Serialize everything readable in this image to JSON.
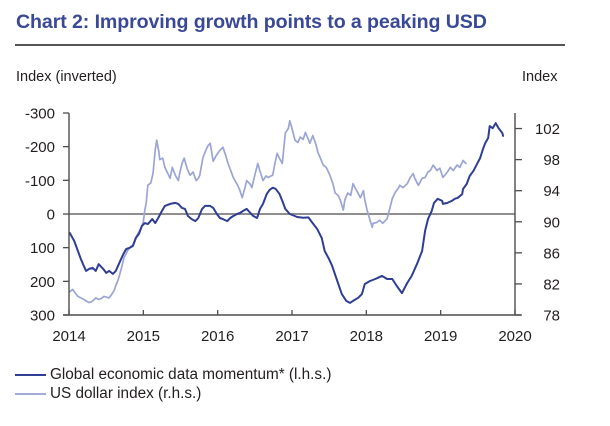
{
  "chart_data": {
    "type": "line",
    "title": "Chart 2: Improving growth points to a peaking USD",
    "x_axis": {
      "label": "",
      "range": [
        2014,
        2020
      ],
      "ticks": [
        2014,
        2015,
        2016,
        2017,
        2018,
        2019,
        2020
      ],
      "tick_labels": [
        "2014",
        "2015",
        "2016",
        "2017",
        "2018",
        "2019",
        "2020"
      ]
    },
    "y_axis_left": {
      "label": "Index (inverted)",
      "range": [
        -300,
        300
      ],
      "inverted": true,
      "ticks": [
        -300,
        -200,
        -100,
        0,
        100,
        200,
        300
      ],
      "tick_labels": [
        "-300",
        "-200",
        "-100",
        "0",
        "100",
        "200",
        "300"
      ]
    },
    "y_axis_right": {
      "label": "Index",
      "range": [
        78,
        104
      ],
      "ticks": [
        78,
        82,
        86,
        90,
        94,
        98,
        102
      ],
      "tick_labels": [
        "78",
        "82",
        "86",
        "90",
        "94",
        "98",
        "102"
      ]
    },
    "reference_line": {
      "axis": "left",
      "value": 0,
      "color": "#8f8f8f"
    },
    "grid": false,
    "legend_position": "bottom-left",
    "series": [
      {
        "name": "Global economic data momentum* (l.h.s.)",
        "axis": "left",
        "color": "#2f3e92",
        "points": [
          [
            2014.01,
            56
          ],
          [
            2014.07,
            80
          ],
          [
            2014.12,
            110
          ],
          [
            2014.16,
            134
          ],
          [
            2014.2,
            155
          ],
          [
            2014.23,
            169
          ],
          [
            2014.27,
            163
          ],
          [
            2014.32,
            160
          ],
          [
            2014.36,
            169
          ],
          [
            2014.4,
            149
          ],
          [
            2014.46,
            163
          ],
          [
            2014.5,
            175
          ],
          [
            2014.54,
            169
          ],
          [
            2014.59,
            178
          ],
          [
            2014.63,
            169
          ],
          [
            2014.67,
            149
          ],
          [
            2014.73,
            119
          ],
          [
            2014.77,
            104
          ],
          [
            2014.81,
            101
          ],
          [
            2014.86,
            95
          ],
          [
            2014.9,
            71
          ],
          [
            2014.94,
            59
          ],
          [
            2014.98,
            36
          ],
          [
            2015.02,
            27
          ],
          [
            2015.06,
            30
          ],
          [
            2015.12,
            15
          ],
          [
            2015.16,
            27
          ],
          [
            2015.2,
            12
          ],
          [
            2015.25,
            -9
          ],
          [
            2015.29,
            -24
          ],
          [
            2015.36,
            -30
          ],
          [
            2015.43,
            -33
          ],
          [
            2015.47,
            -30
          ],
          [
            2015.52,
            -18
          ],
          [
            2015.56,
            -15
          ],
          [
            2015.6,
            6
          ],
          [
            2015.65,
            15
          ],
          [
            2015.7,
            21
          ],
          [
            2015.74,
            12
          ],
          [
            2015.79,
            -15
          ],
          [
            2015.83,
            -24
          ],
          [
            2015.9,
            -24
          ],
          [
            2015.94,
            -18
          ],
          [
            2015.99,
            0
          ],
          [
            2016.03,
            12
          ],
          [
            2016.07,
            15
          ],
          [
            2016.13,
            21
          ],
          [
            2016.17,
            12
          ],
          [
            2016.21,
            6
          ],
          [
            2016.26,
            0
          ],
          [
            2016.3,
            -3
          ],
          [
            2016.34,
            -9
          ],
          [
            2016.39,
            -15
          ],
          [
            2016.44,
            -3
          ],
          [
            2016.48,
            6
          ],
          [
            2016.53,
            12
          ],
          [
            2016.57,
            -15
          ],
          [
            2016.61,
            -30
          ],
          [
            2016.66,
            -59
          ],
          [
            2016.7,
            -72
          ],
          [
            2016.74,
            -78
          ],
          [
            2016.78,
            -75
          ],
          [
            2016.83,
            -60
          ],
          [
            2016.87,
            -39
          ],
          [
            2016.91,
            -15
          ],
          [
            2016.97,
            0
          ],
          [
            2017.07,
            9
          ],
          [
            2017.15,
            11
          ],
          [
            2017.22,
            10
          ],
          [
            2017.27,
            25
          ],
          [
            2017.34,
            45
          ],
          [
            2017.4,
            71
          ],
          [
            2017.44,
            110
          ],
          [
            2017.5,
            135
          ],
          [
            2017.54,
            154
          ],
          [
            2017.61,
            199
          ],
          [
            2017.67,
            238
          ],
          [
            2017.73,
            258
          ],
          [
            2017.78,
            264
          ],
          [
            2017.82,
            258
          ],
          [
            2017.89,
            249
          ],
          [
            2017.94,
            238
          ],
          [
            2017.98,
            208
          ],
          [
            2018.05,
            199
          ],
          [
            2018.12,
            193
          ],
          [
            2018.17,
            188
          ],
          [
            2018.21,
            184
          ],
          [
            2018.28,
            193
          ],
          [
            2018.35,
            193
          ],
          [
            2018.41,
            214
          ],
          [
            2018.48,
            235
          ],
          [
            2018.55,
            205
          ],
          [
            2018.61,
            184
          ],
          [
            2018.68,
            149
          ],
          [
            2018.75,
            110
          ],
          [
            2018.79,
            50
          ],
          [
            2018.83,
            15
          ],
          [
            2018.88,
            -9
          ],
          [
            2018.91,
            -33
          ],
          [
            2018.96,
            -45
          ],
          [
            2019.02,
            -39
          ],
          [
            2019.03,
            -30
          ],
          [
            2019.09,
            -33
          ],
          [
            2019.15,
            -39
          ],
          [
            2019.19,
            -45
          ],
          [
            2019.23,
            -48
          ],
          [
            2019.29,
            -59
          ],
          [
            2019.3,
            -74
          ],
          [
            2019.35,
            -89
          ],
          [
            2019.39,
            -113
          ],
          [
            2019.44,
            -128
          ],
          [
            2019.49,
            -149
          ],
          [
            2019.53,
            -166
          ],
          [
            2019.57,
            -193
          ],
          [
            2019.6,
            -211
          ],
          [
            2019.64,
            -226
          ],
          [
            2019.66,
            -261
          ],
          [
            2019.7,
            -255
          ],
          [
            2019.74,
            -270
          ],
          [
            2019.78,
            -255
          ],
          [
            2019.83,
            -240
          ],
          [
            2019.84,
            -232
          ]
        ]
      },
      {
        "name": "US dollar index (r.h.s.)",
        "axis": "right",
        "color": "#9ba5d3",
        "points": [
          [
            2014.01,
            81.0
          ],
          [
            2014.05,
            81.3
          ],
          [
            2014.08,
            80.9
          ],
          [
            2014.12,
            80.4
          ],
          [
            2014.16,
            80.2
          ],
          [
            2014.2,
            80.0
          ],
          [
            2014.23,
            79.8
          ],
          [
            2014.27,
            79.6
          ],
          [
            2014.3,
            79.7
          ],
          [
            2014.34,
            80.0
          ],
          [
            2014.36,
            80.2
          ],
          [
            2014.4,
            80.0
          ],
          [
            2014.43,
            80.1
          ],
          [
            2014.47,
            80.4
          ],
          [
            2014.5,
            80.3
          ],
          [
            2014.54,
            80.2
          ],
          [
            2014.57,
            80.6
          ],
          [
            2014.61,
            81.2
          ],
          [
            2014.63,
            81.8
          ],
          [
            2014.66,
            82.5
          ],
          [
            2014.7,
            83.8
          ],
          [
            2014.74,
            85.4
          ],
          [
            2014.77,
            85.9
          ],
          [
            2014.79,
            86.3
          ],
          [
            2014.83,
            86.8
          ],
          [
            2014.86,
            87.0
          ],
          [
            2014.9,
            88.0
          ],
          [
            2014.93,
            88.5
          ],
          [
            2014.97,
            89.2
          ],
          [
            2015.0,
            90.0
          ],
          [
            2015.02,
            91.5
          ],
          [
            2015.04,
            92.5
          ],
          [
            2015.06,
            94.7
          ],
          [
            2015.1,
            95.0
          ],
          [
            2015.13,
            96.2
          ],
          [
            2015.16,
            99.2
          ],
          [
            2015.18,
            100.5
          ],
          [
            2015.21,
            99.0
          ],
          [
            2015.22,
            98.0
          ],
          [
            2015.26,
            98.2
          ],
          [
            2015.29,
            97.0
          ],
          [
            2015.32,
            96.4
          ],
          [
            2015.36,
            95.6
          ],
          [
            2015.39,
            97.0
          ],
          [
            2015.43,
            96.0
          ],
          [
            2015.47,
            95.3
          ],
          [
            2015.49,
            96.3
          ],
          [
            2015.52,
            97.5
          ],
          [
            2015.55,
            98.2
          ],
          [
            2015.59,
            96.8
          ],
          [
            2015.63,
            96.0
          ],
          [
            2015.67,
            96.4
          ],
          [
            2015.71,
            95.3
          ],
          [
            2015.74,
            95.6
          ],
          [
            2015.76,
            96.0
          ],
          [
            2015.8,
            98.2
          ],
          [
            2015.84,
            99.2
          ],
          [
            2015.87,
            99.8
          ],
          [
            2015.9,
            100.1
          ],
          [
            2015.94,
            97.8
          ],
          [
            2015.98,
            98.5
          ],
          [
            2016.0,
            98.8
          ],
          [
            2016.04,
            99.3
          ],
          [
            2016.07,
            99.6
          ],
          [
            2016.11,
            98.5
          ],
          [
            2016.14,
            97.5
          ],
          [
            2016.18,
            96.5
          ],
          [
            2016.21,
            95.7
          ],
          [
            2016.25,
            95.0
          ],
          [
            2016.27,
            94.7
          ],
          [
            2016.3,
            94.0
          ],
          [
            2016.33,
            93.1
          ],
          [
            2016.37,
            94.5
          ],
          [
            2016.39,
            95.3
          ],
          [
            2016.44,
            94.8
          ],
          [
            2016.46,
            94.4
          ],
          [
            2016.5,
            96.0
          ],
          [
            2016.54,
            97.5
          ],
          [
            2016.57,
            96.5
          ],
          [
            2016.61,
            95.3
          ],
          [
            2016.65,
            95.9
          ],
          [
            2016.68,
            95.7
          ],
          [
            2016.72,
            95.9
          ],
          [
            2016.74,
            96.0
          ],
          [
            2016.77,
            97.5
          ],
          [
            2016.8,
            98.8
          ],
          [
            2016.84,
            98.0
          ],
          [
            2016.87,
            97.5
          ],
          [
            2016.91,
            101.4
          ],
          [
            2016.95,
            102.0
          ],
          [
            2016.97,
            103.0
          ],
          [
            2017.0,
            102.0
          ],
          [
            2017.04,
            100.5
          ],
          [
            2017.08,
            100.2
          ],
          [
            2017.11,
            100.9
          ],
          [
            2017.15,
            100.6
          ],
          [
            2017.18,
            101.5
          ],
          [
            2017.22,
            100.6
          ],
          [
            2017.24,
            100.1
          ],
          [
            2017.28,
            101.1
          ],
          [
            2017.32,
            100.0
          ],
          [
            2017.35,
            98.9
          ],
          [
            2017.39,
            98.0
          ],
          [
            2017.42,
            97.3
          ],
          [
            2017.46,
            97.0
          ],
          [
            2017.48,
            96.6
          ],
          [
            2017.51,
            96.0
          ],
          [
            2017.55,
            94.9
          ],
          [
            2017.58,
            93.7
          ],
          [
            2017.62,
            93.4
          ],
          [
            2017.65,
            92.8
          ],
          [
            2017.69,
            91.5
          ],
          [
            2017.71,
            92.8
          ],
          [
            2017.75,
            93.7
          ],
          [
            2017.79,
            93.4
          ],
          [
            2017.82,
            94.9
          ],
          [
            2017.87,
            94.0
          ],
          [
            2017.92,
            93.1
          ],
          [
            2017.96,
            94.0
          ],
          [
            2017.98,
            92.8
          ],
          [
            2018.01,
            91.5
          ],
          [
            2018.05,
            90.2
          ],
          [
            2018.08,
            89.3
          ],
          [
            2018.09,
            89.8
          ],
          [
            2018.14,
            89.9
          ],
          [
            2018.18,
            90.2
          ],
          [
            2018.22,
            89.8
          ],
          [
            2018.28,
            90.4
          ],
          [
            2018.31,
            91.5
          ],
          [
            2018.35,
            93.0
          ],
          [
            2018.39,
            93.8
          ],
          [
            2018.43,
            94.3
          ],
          [
            2018.45,
            94.7
          ],
          [
            2018.49,
            94.4
          ],
          [
            2018.55,
            94.9
          ],
          [
            2018.59,
            95.7
          ],
          [
            2018.63,
            96.2
          ],
          [
            2018.65,
            95.6
          ],
          [
            2018.7,
            94.7
          ],
          [
            2018.75,
            95.6
          ],
          [
            2018.79,
            95.7
          ],
          [
            2018.83,
            96.4
          ],
          [
            2018.86,
            96.6
          ],
          [
            2018.9,
            97.3
          ],
          [
            2018.95,
            96.6
          ],
          [
            2018.99,
            96.9
          ],
          [
            2019.03,
            95.7
          ],
          [
            2019.09,
            96.4
          ],
          [
            2019.13,
            97.0
          ],
          [
            2019.17,
            96.6
          ],
          [
            2019.22,
            97.3
          ],
          [
            2019.26,
            97.0
          ],
          [
            2019.3,
            97.9
          ],
          [
            2019.34,
            97.5
          ]
        ]
      }
    ]
  },
  "colors": {
    "title": "#3a4996",
    "axis": "#4d4d4d"
  }
}
